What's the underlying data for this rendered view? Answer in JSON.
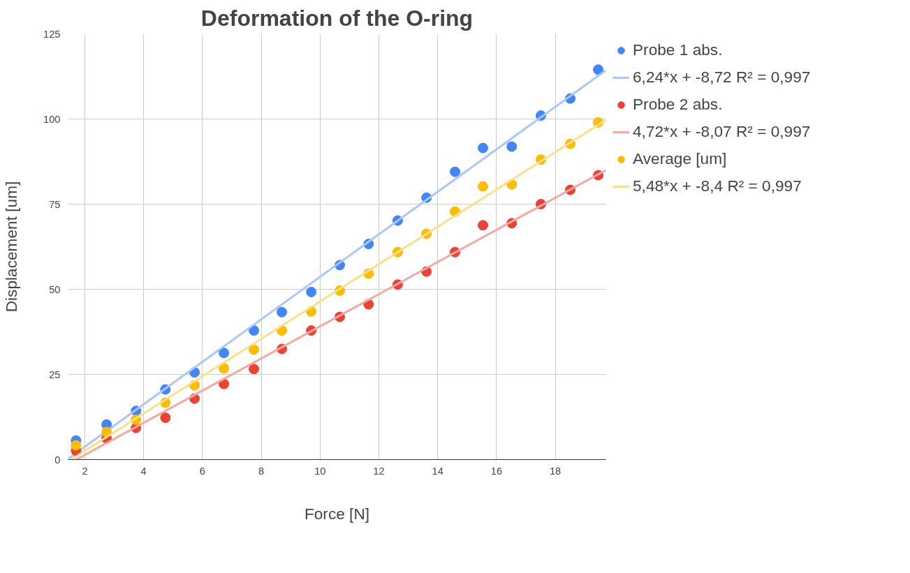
{
  "chart_data": {
    "type": "scatter",
    "title": "Deformation of the O-ring",
    "xlabel": "Force [N]",
    "ylabel": "Displacement [um]",
    "xlim": [
      1.43,
      19.72
    ],
    "xticks": [
      2,
      4,
      6,
      8,
      10,
      12,
      14,
      16,
      18
    ],
    "ylim": [
      0,
      125
    ],
    "yticks": [
      0,
      25,
      50,
      75,
      100,
      125
    ],
    "grid": true,
    "legend": "right",
    "series": [
      {
        "name": "Probe 1 abs.",
        "marker": "circle",
        "color": "#4285f4",
        "x": [
          1.7,
          2.74,
          3.74,
          4.74,
          5.73,
          6.73,
          7.75,
          8.7,
          9.7,
          10.67,
          11.65,
          12.64,
          13.62,
          14.59,
          15.54,
          16.52,
          17.51,
          18.51,
          19.46
        ],
        "values": [
          5.6,
          10.3,
          14.3,
          20.6,
          25.6,
          31.3,
          37.9,
          43.3,
          49.2,
          57.1,
          63.3,
          70.2,
          76.9,
          84.5,
          91.5,
          91.9,
          101.0,
          106.0,
          114.5
        ]
      },
      {
        "name": "6,24*x + -8,72 R² = 0,997",
        "type": "line",
        "color": "#a8c7fa",
        "x": [
          1.43,
          19.72
        ],
        "values": [
          0.2,
          114.3
        ]
      },
      {
        "name": "Probe 2 abs.",
        "marker": "circle",
        "color": "#ea4335",
        "x": [
          1.7,
          2.74,
          3.74,
          4.74,
          5.73,
          6.73,
          7.75,
          8.7,
          9.7,
          10.67,
          11.65,
          12.64,
          13.62,
          14.59,
          15.54,
          16.52,
          17.51,
          18.51,
          19.46
        ],
        "values": [
          2.6,
          6.2,
          9.3,
          12.3,
          17.9,
          22.2,
          26.6,
          32.5,
          37.9,
          41.9,
          45.6,
          51.4,
          55.2,
          60.9,
          68.8,
          69.4,
          75.0,
          79.2,
          83.5
        ]
      },
      {
        "name": "4,72*x + -8,07 R² = 0,997",
        "type": "line",
        "color": "#f4a8a2",
        "x": [
          1.71,
          19.72
        ],
        "values": [
          0.0,
          85.0
        ]
      },
      {
        "name": "Average [um]",
        "marker": "circle",
        "color": "#fbbc04",
        "x": [
          1.7,
          2.74,
          3.74,
          4.74,
          5.73,
          6.73,
          7.75,
          8.7,
          9.7,
          10.67,
          11.65,
          12.64,
          13.62,
          14.59,
          15.54,
          16.52,
          17.51,
          18.51,
          19.46
        ],
        "values": [
          4.2,
          8.1,
          11.7,
          16.7,
          21.8,
          26.8,
          32.3,
          37.9,
          43.5,
          49.6,
          54.6,
          60.9,
          66.3,
          72.8,
          80.2,
          80.8,
          88.1,
          92.7,
          99.0
        ]
      },
      {
        "name": "5,48*x + -8,4 R² = 0,997",
        "type": "line",
        "color": "#fbe08a",
        "x": [
          1.53,
          19.72
        ],
        "values": [
          0.0,
          99.7
        ]
      }
    ]
  }
}
